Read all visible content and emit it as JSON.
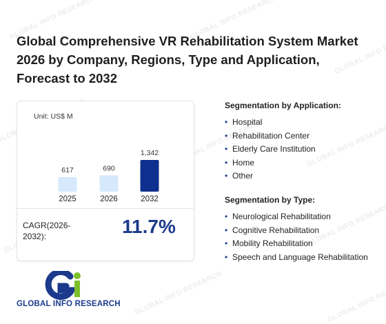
{
  "watermark_text": "GLOBAL INFO RESEARCH",
  "title": "Global Comprehensive VR Rehabilitation System Market 2026 by Company, Regions, Type and Application, Forecast to 2032",
  "card": {
    "unit_label": "Unit: US$ M",
    "cagr_label": "CAGR(2026-2032):",
    "cagr_value": "11.7%"
  },
  "chart_data": {
    "type": "bar",
    "categories": [
      "2025",
      "2026",
      "2032"
    ],
    "values": [
      617,
      690,
      1342
    ],
    "value_labels": [
      "617",
      "690",
      "1,342"
    ],
    "ylim": [
      0,
      1342
    ],
    "colors": [
      "#d6e8fb",
      "#d6e8fb",
      "#0f2f8f"
    ],
    "grid": false
  },
  "segmentation_application": {
    "heading": "Segmentation by Application:",
    "items": [
      "Hospital",
      "Rehabilitation Center",
      "Elderly Care Institution",
      "Home",
      "Other"
    ]
  },
  "segmentation_type": {
    "heading": "Segmentation by Type:",
    "items": [
      "Neurological Rehabilitation",
      "Cognitive Rehabilitation",
      "Mobility Rehabilitation",
      "Speech and Language Rehabilitation"
    ]
  },
  "logo": {
    "text": "GLOBAL INFO RESEARCH",
    "colors": {
      "primary": "#1b3a8c",
      "accent": "#7cbf2a"
    }
  }
}
